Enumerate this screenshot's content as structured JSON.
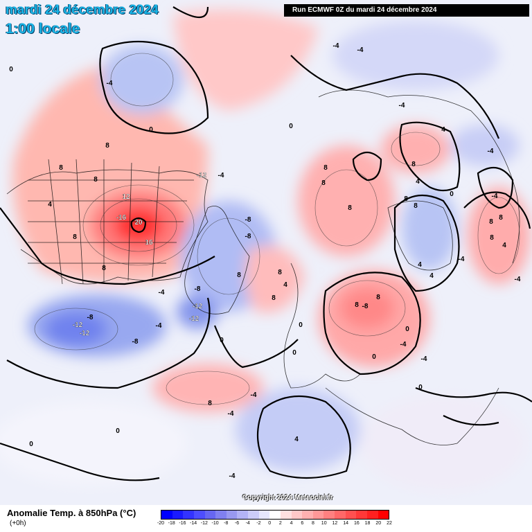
{
  "header": {
    "date": "mardi 24 décembre 2024",
    "time": "1:00 locale",
    "run": "Run ECMWF 0Z du mardi 24 décembre 2024"
  },
  "copyright": "Copyright 2024 Meteociel.fr",
  "legend": {
    "title": "Anomalie Temp. à 850hPa (°C)",
    "subtitle": "(+0h)",
    "ticks": [
      "-20",
      "-18",
      "-16",
      "-14",
      "-12",
      "-10",
      "-8",
      "-6",
      "-4",
      "-2",
      "0",
      "2",
      "4",
      "6",
      "8",
      "10",
      "12",
      "14",
      "16",
      "18",
      "20",
      "22"
    ],
    "colors": [
      "#0000ff",
      "#1a1aff",
      "#3333ff",
      "#4d4dff",
      "#6666f2",
      "#8080f0",
      "#9999f0",
      "#b3b3f5",
      "#ccccf8",
      "#e6e6fc",
      "#ffffff",
      "#ffe0e0",
      "#ffc8c8",
      "#ffb0b0",
      "#ff9898",
      "#ff8080",
      "#ff6868",
      "#ff5050",
      "#ff3838",
      "#ff2020",
      "#ff0000"
    ]
  },
  "anomaly_labels": [
    {
      "text": "-4"
    },
    {
      "text": "0"
    },
    {
      "text": "0"
    },
    {
      "text": "0"
    },
    {
      "text": "8"
    },
    {
      "text": "8"
    },
    {
      "text": "8"
    },
    {
      "text": "8"
    },
    {
      "text": "12"
    },
    {
      "text": "-16"
    },
    {
      "text": "20"
    },
    {
      "text": "16"
    },
    {
      "text": "8"
    },
    {
      "text": "4"
    },
    {
      "text": "-12"
    },
    {
      "text": "-12"
    },
    {
      "text": "-12"
    },
    {
      "text": "-4"
    },
    {
      "text": "-8"
    },
    {
      "text": "-8"
    },
    {
      "text": "-12"
    },
    {
      "text": "-12"
    },
    {
      "text": "-8"
    },
    {
      "text": "-4"
    },
    {
      "text": "-8"
    },
    {
      "text": "-8"
    },
    {
      "text": "8"
    },
    {
      "text": "8"
    },
    {
      "text": "4"
    },
    {
      "text": "8"
    },
    {
      "text": "8"
    },
    {
      "text": "8"
    },
    {
      "text": "8"
    },
    {
      "text": "8"
    },
    {
      "text": "8"
    },
    {
      "text": "-4"
    },
    {
      "text": "-4"
    },
    {
      "text": "-4"
    },
    {
      "text": "-4"
    },
    {
      "text": "4"
    },
    {
      "text": "8"
    },
    {
      "text": "8"
    },
    {
      "text": "8"
    },
    {
      "text": "4"
    },
    {
      "text": "0"
    },
    {
      "text": "0"
    },
    {
      "text": "-4"
    },
    {
      "text": "0"
    },
    {
      "text": "-8"
    },
    {
      "text": "-4"
    },
    {
      "text": "4"
    },
    {
      "text": "0"
    },
    {
      "text": "0"
    },
    {
      "text": "4"
    },
    {
      "text": "4"
    },
    {
      "text": "-4"
    },
    {
      "text": "8"
    },
    {
      "text": "4"
    },
    {
      "text": "-4"
    },
    {
      "text": "-4"
    },
    {
      "text": "0"
    },
    {
      "text": "0"
    },
    {
      "text": "8"
    },
    {
      "text": "-4"
    },
    {
      "text": "-4"
    },
    {
      "text": "0"
    },
    {
      "text": "-4"
    },
    {
      "text": "8"
    },
    {
      "text": "8"
    },
    {
      "text": "0"
    },
    {
      "text": "-4"
    }
  ]
}
